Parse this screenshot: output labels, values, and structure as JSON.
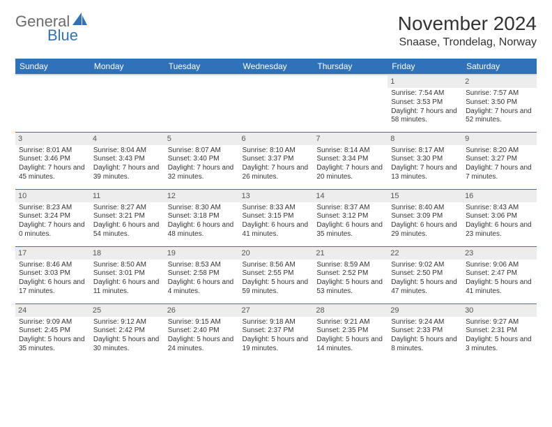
{
  "brand": {
    "general": "General",
    "blue": "Blue"
  },
  "title": "November 2024",
  "location": "Snaase, Trondelag, Norway",
  "colors": {
    "header_bg": "#2f72b9",
    "header_text": "#ffffff",
    "daynum_bg": "#ededed",
    "cell_border": "#2f72b9",
    "logo_gray": "#6b6b6b",
    "logo_blue": "#2f72b9"
  },
  "weekdays": [
    "Sunday",
    "Monday",
    "Tuesday",
    "Wednesday",
    "Thursday",
    "Friday",
    "Saturday"
  ],
  "grid": [
    [
      null,
      null,
      null,
      null,
      null,
      {
        "day": "1",
        "sunrise": "Sunrise: 7:54 AM",
        "sunset": "Sunset: 3:53 PM",
        "daylight": "Daylight: 7 hours and 58 minutes."
      },
      {
        "day": "2",
        "sunrise": "Sunrise: 7:57 AM",
        "sunset": "Sunset: 3:50 PM",
        "daylight": "Daylight: 7 hours and 52 minutes."
      }
    ],
    [
      {
        "day": "3",
        "sunrise": "Sunrise: 8:01 AM",
        "sunset": "Sunset: 3:46 PM",
        "daylight": "Daylight: 7 hours and 45 minutes."
      },
      {
        "day": "4",
        "sunrise": "Sunrise: 8:04 AM",
        "sunset": "Sunset: 3:43 PM",
        "daylight": "Daylight: 7 hours and 39 minutes."
      },
      {
        "day": "5",
        "sunrise": "Sunrise: 8:07 AM",
        "sunset": "Sunset: 3:40 PM",
        "daylight": "Daylight: 7 hours and 32 minutes."
      },
      {
        "day": "6",
        "sunrise": "Sunrise: 8:10 AM",
        "sunset": "Sunset: 3:37 PM",
        "daylight": "Daylight: 7 hours and 26 minutes."
      },
      {
        "day": "7",
        "sunrise": "Sunrise: 8:14 AM",
        "sunset": "Sunset: 3:34 PM",
        "daylight": "Daylight: 7 hours and 20 minutes."
      },
      {
        "day": "8",
        "sunrise": "Sunrise: 8:17 AM",
        "sunset": "Sunset: 3:30 PM",
        "daylight": "Daylight: 7 hours and 13 minutes."
      },
      {
        "day": "9",
        "sunrise": "Sunrise: 8:20 AM",
        "sunset": "Sunset: 3:27 PM",
        "daylight": "Daylight: 7 hours and 7 minutes."
      }
    ],
    [
      {
        "day": "10",
        "sunrise": "Sunrise: 8:23 AM",
        "sunset": "Sunset: 3:24 PM",
        "daylight": "Daylight: 7 hours and 0 minutes."
      },
      {
        "day": "11",
        "sunrise": "Sunrise: 8:27 AM",
        "sunset": "Sunset: 3:21 PM",
        "daylight": "Daylight: 6 hours and 54 minutes."
      },
      {
        "day": "12",
        "sunrise": "Sunrise: 8:30 AM",
        "sunset": "Sunset: 3:18 PM",
        "daylight": "Daylight: 6 hours and 48 minutes."
      },
      {
        "day": "13",
        "sunrise": "Sunrise: 8:33 AM",
        "sunset": "Sunset: 3:15 PM",
        "daylight": "Daylight: 6 hours and 41 minutes."
      },
      {
        "day": "14",
        "sunrise": "Sunrise: 8:37 AM",
        "sunset": "Sunset: 3:12 PM",
        "daylight": "Daylight: 6 hours and 35 minutes."
      },
      {
        "day": "15",
        "sunrise": "Sunrise: 8:40 AM",
        "sunset": "Sunset: 3:09 PM",
        "daylight": "Daylight: 6 hours and 29 minutes."
      },
      {
        "day": "16",
        "sunrise": "Sunrise: 8:43 AM",
        "sunset": "Sunset: 3:06 PM",
        "daylight": "Daylight: 6 hours and 23 minutes."
      }
    ],
    [
      {
        "day": "17",
        "sunrise": "Sunrise: 8:46 AM",
        "sunset": "Sunset: 3:03 PM",
        "daylight": "Daylight: 6 hours and 17 minutes."
      },
      {
        "day": "18",
        "sunrise": "Sunrise: 8:50 AM",
        "sunset": "Sunset: 3:01 PM",
        "daylight": "Daylight: 6 hours and 11 minutes."
      },
      {
        "day": "19",
        "sunrise": "Sunrise: 8:53 AM",
        "sunset": "Sunset: 2:58 PM",
        "daylight": "Daylight: 6 hours and 4 minutes."
      },
      {
        "day": "20",
        "sunrise": "Sunrise: 8:56 AM",
        "sunset": "Sunset: 2:55 PM",
        "daylight": "Daylight: 5 hours and 59 minutes."
      },
      {
        "day": "21",
        "sunrise": "Sunrise: 8:59 AM",
        "sunset": "Sunset: 2:52 PM",
        "daylight": "Daylight: 5 hours and 53 minutes."
      },
      {
        "day": "22",
        "sunrise": "Sunrise: 9:02 AM",
        "sunset": "Sunset: 2:50 PM",
        "daylight": "Daylight: 5 hours and 47 minutes."
      },
      {
        "day": "23",
        "sunrise": "Sunrise: 9:06 AM",
        "sunset": "Sunset: 2:47 PM",
        "daylight": "Daylight: 5 hours and 41 minutes."
      }
    ],
    [
      {
        "day": "24",
        "sunrise": "Sunrise: 9:09 AM",
        "sunset": "Sunset: 2:45 PM",
        "daylight": "Daylight: 5 hours and 35 minutes."
      },
      {
        "day": "25",
        "sunrise": "Sunrise: 9:12 AM",
        "sunset": "Sunset: 2:42 PM",
        "daylight": "Daylight: 5 hours and 30 minutes."
      },
      {
        "day": "26",
        "sunrise": "Sunrise: 9:15 AM",
        "sunset": "Sunset: 2:40 PM",
        "daylight": "Daylight: 5 hours and 24 minutes."
      },
      {
        "day": "27",
        "sunrise": "Sunrise: 9:18 AM",
        "sunset": "Sunset: 2:37 PM",
        "daylight": "Daylight: 5 hours and 19 minutes."
      },
      {
        "day": "28",
        "sunrise": "Sunrise: 9:21 AM",
        "sunset": "Sunset: 2:35 PM",
        "daylight": "Daylight: 5 hours and 14 minutes."
      },
      {
        "day": "29",
        "sunrise": "Sunrise: 9:24 AM",
        "sunset": "Sunset: 2:33 PM",
        "daylight": "Daylight: 5 hours and 8 minutes."
      },
      {
        "day": "30",
        "sunrise": "Sunrise: 9:27 AM",
        "sunset": "Sunset: 2:31 PM",
        "daylight": "Daylight: 5 hours and 3 minutes."
      }
    ]
  ]
}
